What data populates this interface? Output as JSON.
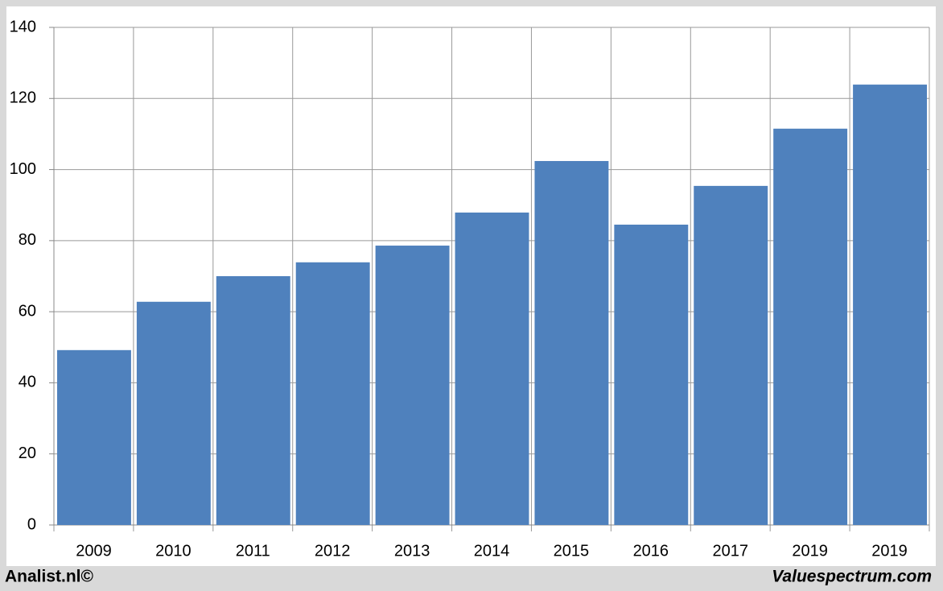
{
  "chart_data": {
    "type": "bar",
    "categories": [
      "2009",
      "2010",
      "2011",
      "2012",
      "2013",
      "2014",
      "2015",
      "2016",
      "2017",
      "2019",
      "2019"
    ],
    "values": [
      49.2,
      62.8,
      70.0,
      73.9,
      78.6,
      87.9,
      102.4,
      84.5,
      95.4,
      111.5,
      123.9
    ],
    "color": "#4f81bd",
    "ylim": [
      0,
      140
    ],
    "yticks": [
      0,
      20,
      40,
      60,
      80,
      100,
      120,
      140
    ],
    "grid": true
  },
  "footer": {
    "left": "Analist.nl©",
    "right": "Valuespectrum.com"
  }
}
